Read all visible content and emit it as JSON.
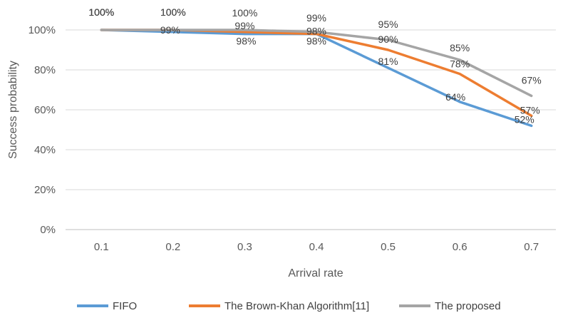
{
  "chart_data": {
    "type": "line",
    "xlabel": "Arrival rate",
    "ylabel": "Success probability",
    "categories": [
      "0.1",
      "0.2",
      "0.3",
      "0.4",
      "0.5",
      "0.6",
      "0.7"
    ],
    "ylim": [
      0,
      100
    ],
    "yticks": [
      "0%",
      "20%",
      "40%",
      "60%",
      "80%",
      "100%"
    ],
    "grid": true,
    "legend_position": "bottom",
    "series": [
      {
        "name": "FIFO",
        "color": "#5B9BD5",
        "values": [
          100,
          99,
          98,
          98,
          81,
          64,
          52
        ],
        "labels": [
          "100%",
          "99%",
          "98%",
          "98%",
          "81%",
          "64%",
          "52%"
        ]
      },
      {
        "name": "The Brown-Khan Algorithm[11]",
        "color": "#ED7D31",
        "values": [
          100,
          100,
          99,
          98,
          90,
          78,
          57
        ],
        "labels": [
          "100%",
          "100%",
          "99%",
          "98%",
          "90%",
          "78%",
          "57%"
        ]
      },
      {
        "name": "The proposed",
        "color": "#A5A5A5",
        "values": [
          100,
          100,
          100,
          99,
          95,
          85,
          67
        ],
        "labels": [
          "100%",
          "100%",
          "100%",
          "99%",
          "95%",
          "85%",
          "67%"
        ]
      }
    ]
  }
}
